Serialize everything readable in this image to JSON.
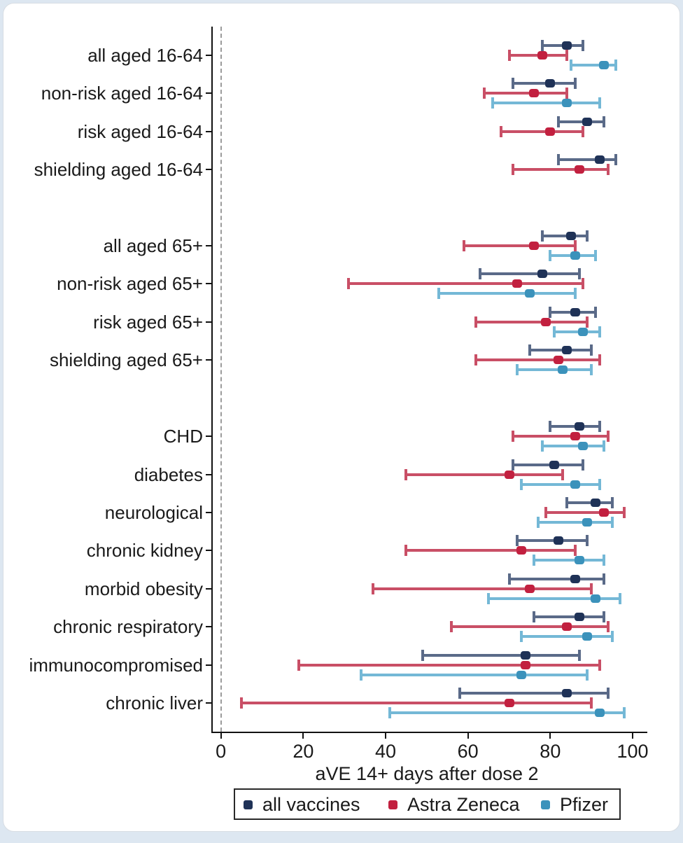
{
  "chart_data": {
    "type": "scatter",
    "subtype": "forest-plot-error-bars",
    "title": "",
    "xlabel": "aVE 14+ days after dose 2",
    "xlim": [
      0,
      100
    ],
    "x_ticks": [
      0,
      20,
      40,
      60,
      80,
      100
    ],
    "zero_reference_line": {
      "x": 0,
      "style": "dashed",
      "color": "#9b9b9b"
    },
    "grid": false,
    "legend_position": "bottom",
    "legend": [
      "all vaccines",
      "Astra Zeneca",
      "Pfizer"
    ],
    "series": [
      {
        "key": "all_vaccines",
        "name": "all vaccines",
        "marker_color": "#1f3257",
        "line_color": "#5a6a88",
        "offset": -14
      },
      {
        "key": "astra_zeneca",
        "name": "Astra Zeneca",
        "marker_color": "#c2203f",
        "line_color": "#c94f66",
        "offset": 0
      },
      {
        "key": "pfizer",
        "name": "Pfizer",
        "marker_color": "#3b92bb",
        "line_color": "#74b8d6",
        "offset": 14
      }
    ],
    "rows": [
      {
        "slot": 1,
        "label": "all aged 16-64",
        "all_vaccines": {
          "lo": 78,
          "est": 84,
          "hi": 88
        },
        "astra_zeneca": {
          "lo": 70,
          "est": 78,
          "hi": 84
        },
        "pfizer": {
          "lo": 85,
          "est": 93,
          "hi": 96
        }
      },
      {
        "slot": 2,
        "label": "non-risk aged 16-64",
        "all_vaccines": {
          "lo": 71,
          "est": 80,
          "hi": 86
        },
        "astra_zeneca": {
          "lo": 64,
          "est": 76,
          "hi": 84
        },
        "pfizer": {
          "lo": 66,
          "est": 84,
          "hi": 92
        }
      },
      {
        "slot": 3,
        "label": "risk aged 16-64",
        "all_vaccines": {
          "lo": 82,
          "est": 89,
          "hi": 93
        },
        "astra_zeneca": {
          "lo": 68,
          "est": 80,
          "hi": 88
        },
        "pfizer": null
      },
      {
        "slot": 4,
        "label": "shielding aged 16-64",
        "all_vaccines": {
          "lo": 82,
          "est": 92,
          "hi": 96
        },
        "astra_zeneca": {
          "lo": 71,
          "est": 87,
          "hi": 94
        },
        "pfizer": null
      },
      {
        "slot": 6,
        "label": "all aged 65+",
        "all_vaccines": {
          "lo": 78,
          "est": 85,
          "hi": 89
        },
        "astra_zeneca": {
          "lo": 59,
          "est": 76,
          "hi": 86
        },
        "pfizer": {
          "lo": 80,
          "est": 86,
          "hi": 91
        }
      },
      {
        "slot": 7,
        "label": "non-risk aged 65+",
        "all_vaccines": {
          "lo": 63,
          "est": 78,
          "hi": 87
        },
        "astra_zeneca": {
          "lo": 31,
          "est": 72,
          "hi": 88
        },
        "pfizer": {
          "lo": 53,
          "est": 75,
          "hi": 86
        }
      },
      {
        "slot": 8,
        "label": "risk aged 65+",
        "all_vaccines": {
          "lo": 80,
          "est": 86,
          "hi": 91
        },
        "astra_zeneca": {
          "lo": 62,
          "est": 79,
          "hi": 89
        },
        "pfizer": {
          "lo": 81,
          "est": 88,
          "hi": 92
        }
      },
      {
        "slot": 9,
        "label": "shielding aged 65+",
        "all_vaccines": {
          "lo": 75,
          "est": 84,
          "hi": 90
        },
        "astra_zeneca": {
          "lo": 62,
          "est": 82,
          "hi": 92
        },
        "pfizer": {
          "lo": 72,
          "est": 83,
          "hi": 90
        }
      },
      {
        "slot": 11,
        "label": "CHD",
        "all_vaccines": {
          "lo": 80,
          "est": 87,
          "hi": 92
        },
        "astra_zeneca": {
          "lo": 71,
          "est": 86,
          "hi": 94
        },
        "pfizer": {
          "lo": 78,
          "est": 88,
          "hi": 93
        }
      },
      {
        "slot": 12,
        "label": "diabetes",
        "all_vaccines": {
          "lo": 71,
          "est": 81,
          "hi": 88
        },
        "astra_zeneca": {
          "lo": 45,
          "est": 70,
          "hi": 83
        },
        "pfizer": {
          "lo": 73,
          "est": 86,
          "hi": 92
        }
      },
      {
        "slot": 13,
        "label": "neurological",
        "all_vaccines": {
          "lo": 84,
          "est": 91,
          "hi": 95
        },
        "astra_zeneca": {
          "lo": 79,
          "est": 93,
          "hi": 98
        },
        "pfizer": {
          "lo": 77,
          "est": 89,
          "hi": 95
        }
      },
      {
        "slot": 14,
        "label": "chronic kidney",
        "all_vaccines": {
          "lo": 72,
          "est": 82,
          "hi": 89
        },
        "astra_zeneca": {
          "lo": 45,
          "est": 73,
          "hi": 86
        },
        "pfizer": {
          "lo": 76,
          "est": 87,
          "hi": 93
        }
      },
      {
        "slot": 15,
        "label": "morbid obesity",
        "all_vaccines": {
          "lo": 70,
          "est": 86,
          "hi": 93
        },
        "astra_zeneca": {
          "lo": 37,
          "est": 75,
          "hi": 90
        },
        "pfizer": {
          "lo": 65,
          "est": 91,
          "hi": 97
        }
      },
      {
        "slot": 16,
        "label": "chronic respiratory",
        "all_vaccines": {
          "lo": 76,
          "est": 87,
          "hi": 93
        },
        "astra_zeneca": {
          "lo": 56,
          "est": 84,
          "hi": 94
        },
        "pfizer": {
          "lo": 73,
          "est": 89,
          "hi": 95
        }
      },
      {
        "slot": 17,
        "label": "immunocompromised",
        "all_vaccines": {
          "lo": 49,
          "est": 74,
          "hi": 87
        },
        "astra_zeneca": {
          "lo": 19,
          "est": 74,
          "hi": 92
        },
        "pfizer": {
          "lo": 34,
          "est": 73,
          "hi": 89
        }
      },
      {
        "slot": 18,
        "label": "chronic liver",
        "all_vaccines": {
          "lo": 58,
          "est": 84,
          "hi": 94
        },
        "astra_zeneca": {
          "lo": 5,
          "est": 70,
          "hi": 90
        },
        "pfizer": {
          "lo": 41,
          "est": 92,
          "hi": 98
        }
      }
    ]
  },
  "colors": {
    "axis": "#111111",
    "text": "#1a1a1a",
    "dashed_line": "#9b9b9b",
    "card_background": "#ffffff",
    "page_background": "#dde7f1"
  }
}
